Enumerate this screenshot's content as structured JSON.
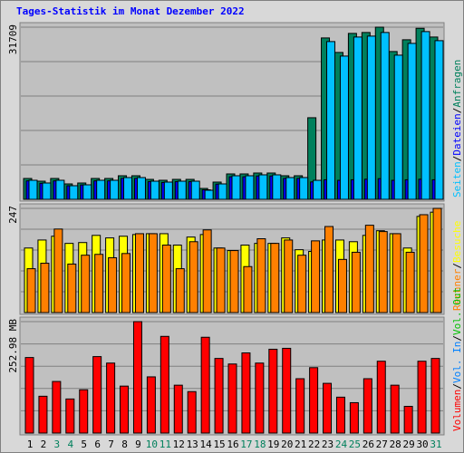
{
  "title": "Tages-Statistik im Monat Dezember 2022",
  "legend_separator": "/",
  "chart_data": [
    {
      "type": "bar",
      "ylim": [
        0,
        31709
      ],
      "yticks": [
        31709
      ],
      "series": [
        {
          "name": "Anfragen",
          "color": "#00805c",
          "values": [
            3841,
            3340,
            3841,
            2839,
            3006,
            3841,
            3841,
            4342,
            4342,
            3674,
            3507,
            3674,
            3674,
            2004,
            3173,
            4676,
            4676,
            4843,
            4843,
            4342,
            4342,
            15030,
            29726,
            27054,
            30563,
            30730,
            31709,
            27221,
            29392,
            31500,
            29893
          ]
        },
        {
          "name": "Dateien",
          "color": "#0000ff",
          "values": [
            3400,
            2950,
            3400,
            2500,
            2650,
            3400,
            3400,
            3850,
            3850,
            3250,
            3100,
            3250,
            3250,
            1750,
            2800,
            4150,
            4150,
            4300,
            4300,
            3850,
            3850,
            3200,
            3600,
            3500,
            3600,
            3700,
            3800,
            3500,
            3600,
            3700,
            3600
          ]
        },
        {
          "name": "Seiten",
          "color": "#00c0ff",
          "values": [
            3507,
            3006,
            3507,
            2505,
            2672,
            3507,
            3507,
            4008,
            4008,
            3340,
            3173,
            3340,
            3340,
            1670,
            2839,
            4342,
            4342,
            4509,
            4509,
            4008,
            4008,
            3500,
            29058,
            26386,
            29893,
            30062,
            30730,
            26553,
            28724,
            30896,
            29225
          ]
        }
      ]
    },
    {
      "type": "bar",
      "ylim": [
        0,
        247
      ],
      "yticks": [
        247
      ],
      "series": [
        {
          "name": "Besuche",
          "color": "#ffff00",
          "values": [
            153,
            172,
            181,
            164,
            166,
            183,
            177,
            181,
            185,
            187,
            187,
            160,
            179,
            185,
            153,
            147,
            160,
            164,
            164,
            177,
            149,
            145,
            172,
            172,
            168,
            183,
            194,
            187,
            153,
            228,
            238
          ]
        },
        {
          "name": "Rechner",
          "color": "#ff8000",
          "values": [
            104,
            117,
            198,
            115,
            136,
            138,
            130,
            140,
            187,
            187,
            160,
            104,
            168,
            196,
            153,
            147,
            109,
            175,
            164,
            172,
            136,
            170,
            204,
            126,
            143,
            207,
            192,
            187,
            143,
            232,
            247
          ]
        }
      ]
    },
    {
      "type": "bar",
      "ylim": [
        0,
        252.98
      ],
      "yticks": [
        {
          "value": 252.98,
          "label": "252.98 MB"
        }
      ],
      "categories": [
        "1",
        "2",
        "3",
        "4",
        "5",
        "6",
        "7",
        "8",
        "9",
        "10",
        "11",
        "12",
        "13",
        "14",
        "15",
        "16",
        "17",
        "18",
        "19",
        "20",
        "21",
        "22",
        "23",
        "24",
        "25",
        "26",
        "27",
        "28",
        "29",
        "30",
        "31"
      ],
      "category_colors": [
        "#000000",
        "#000000",
        "#00805c",
        "#00805c",
        "#000000",
        "#000000",
        "#000000",
        "#000000",
        "#000000",
        "#00805c",
        "#00805c",
        "#000000",
        "#000000",
        "#000000",
        "#000000",
        "#000000",
        "#00805c",
        "#00805c",
        "#000000",
        "#000000",
        "#000000",
        "#000000",
        "#000000",
        "#00805c",
        "#00805c",
        "#000000",
        "#000000",
        "#000000",
        "#000000",
        "#000000",
        "#00805c"
      ],
      "series": [
        {
          "name": "Volumen",
          "color": "#ff0000",
          "values": [
            171.5,
            83.6,
            117.1,
            77.4,
            98.3,
            173.6,
            158.9,
            106.6,
            252.98,
            127.6,
            219.5,
            108.7,
            94.1,
            217.5,
            169.4,
            156.8,
            182,
            158.9,
            190.3,
            192.4,
            123.4,
            148.5,
            112.9,
            81.5,
            69,
            123.4,
            163.1,
            108.7,
            60.6,
            163.1,
            169.4
          ]
        }
      ],
      "extra_legend": [
        {
          "name": "Vol. In",
          "color": "#0080ff"
        },
        {
          "name": "Vol. Out",
          "color": "#00c000"
        }
      ]
    }
  ]
}
